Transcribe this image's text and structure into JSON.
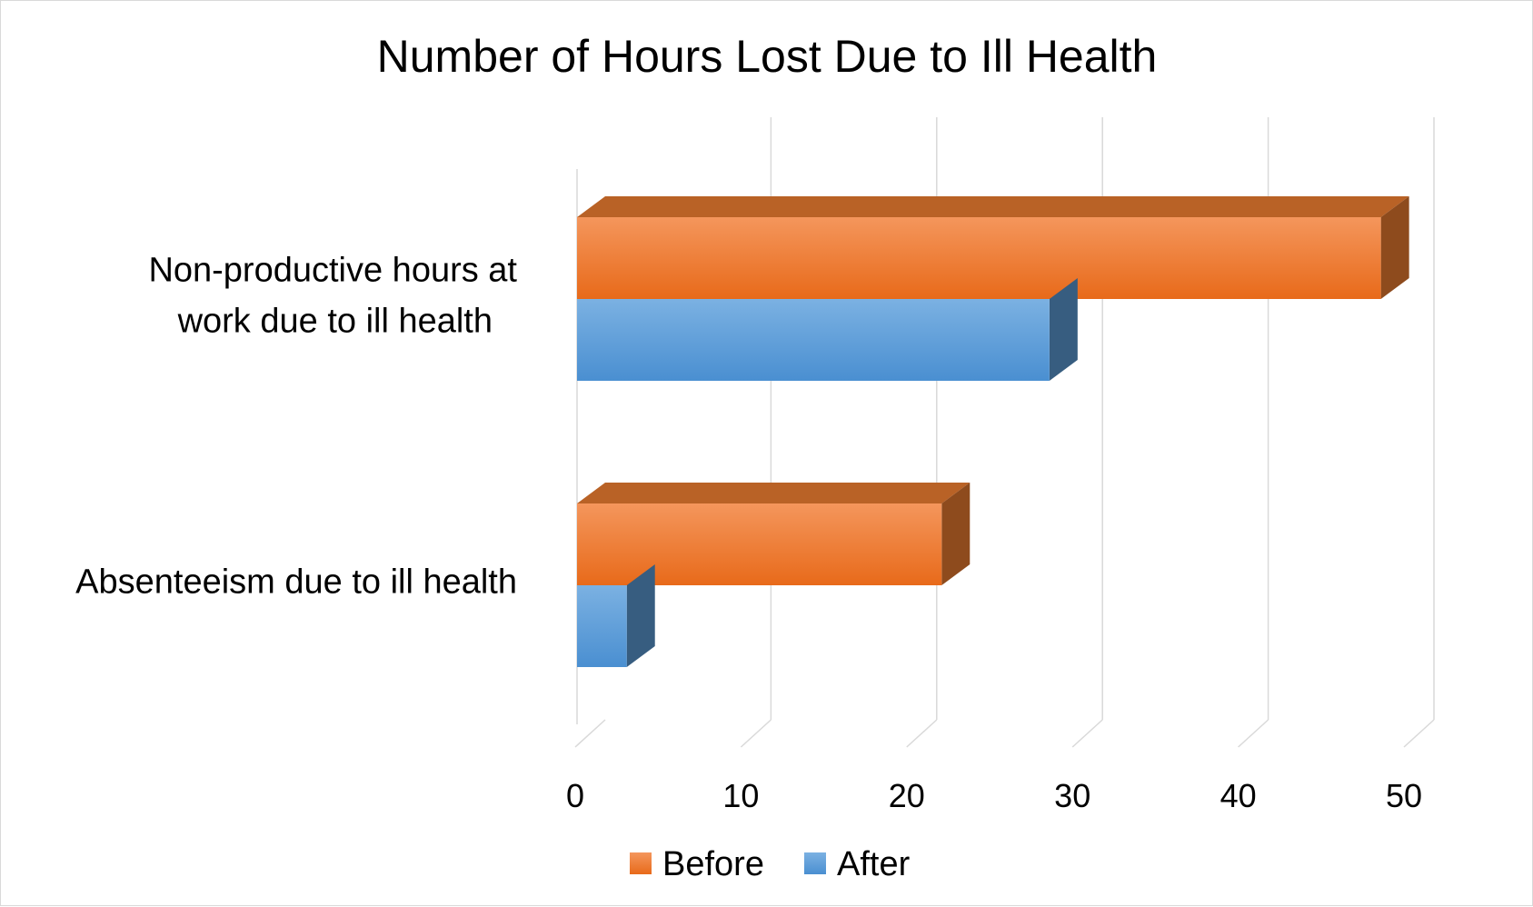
{
  "chart_data": {
    "type": "bar",
    "orientation": "horizontal",
    "style": "3d",
    "title": "Number of Hours Lost Due to Ill Health",
    "categories": [
      "Non-productive hours at work due to ill health",
      "Absenteeism due to ill health"
    ],
    "category_label_lines": [
      [
        "Non-productive hours at",
        "work due to ill health"
      ],
      [
        "Absenteeism due to ill health"
      ]
    ],
    "series": [
      {
        "name": "Before",
        "color": "#ED7D31",
        "values": [
          48.5,
          22
        ]
      },
      {
        "name": "After",
        "color": "#5B9BD5",
        "values": [
          28.5,
          3
        ]
      }
    ],
    "xlim": [
      0,
      50
    ],
    "xticks": [
      "0",
      "10",
      "20",
      "30",
      "40",
      "50"
    ],
    "grid": true,
    "legend": {
      "position": "bottom"
    }
  }
}
